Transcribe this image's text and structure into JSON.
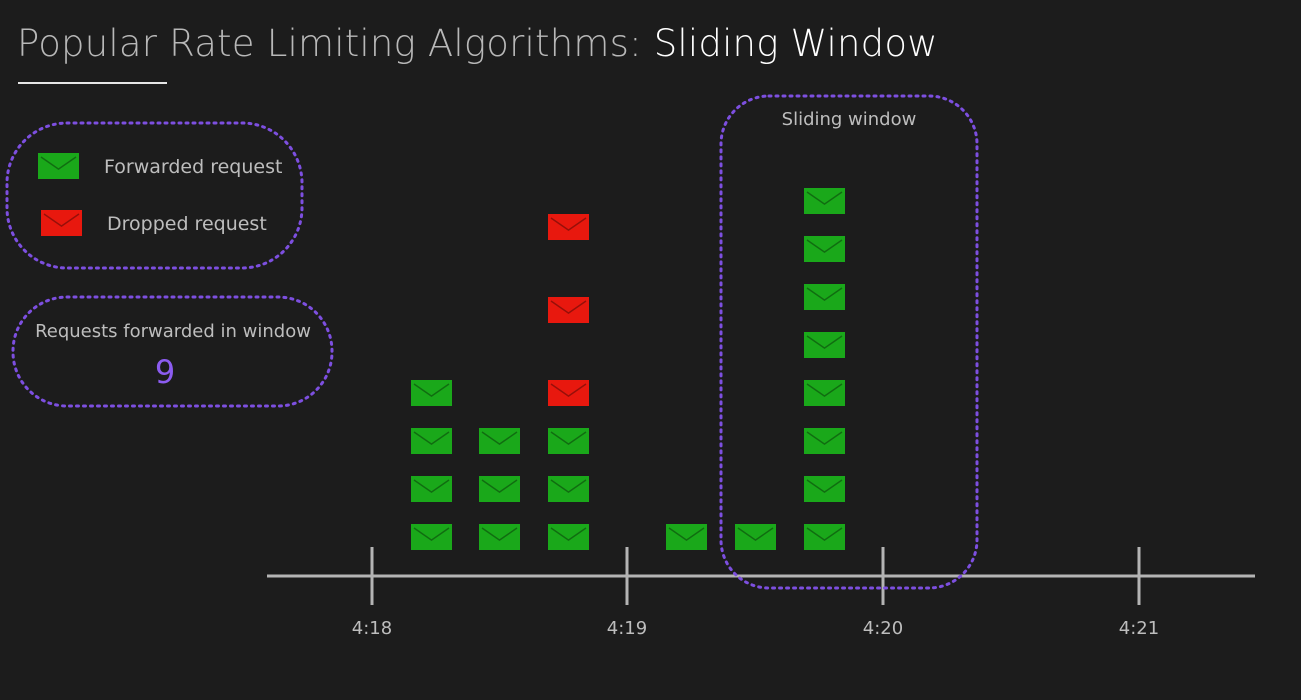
{
  "title": {
    "prefix": "Popular Rate Limiting Algorithms:",
    "highlight": "Sliding Window"
  },
  "legend": {
    "forwarded_label": "Forwarded request",
    "dropped_label": "Dropped request"
  },
  "counter": {
    "label": "Requests forwarded in window",
    "value": "9"
  },
  "window": {
    "label": "Sliding window"
  },
  "timeline": {
    "ticks": [
      "4:18",
      "4:19",
      "4:20",
      "4:21"
    ]
  },
  "colors": {
    "forwarded": "#1aa81a",
    "dropped": "#e8180e",
    "accent": "#7d4fe0",
    "axis": "#b4b4b4"
  },
  "request_columns": [
    {
      "forwarded": 4,
      "dropped": 0
    },
    {
      "forwarded": 3,
      "dropped": 0
    },
    {
      "forwarded": 3,
      "dropped": 3
    },
    {
      "forwarded": 1,
      "dropped": 0
    },
    {
      "forwarded": 1,
      "dropped": 0
    },
    {
      "forwarded": 8,
      "dropped": 0
    }
  ]
}
